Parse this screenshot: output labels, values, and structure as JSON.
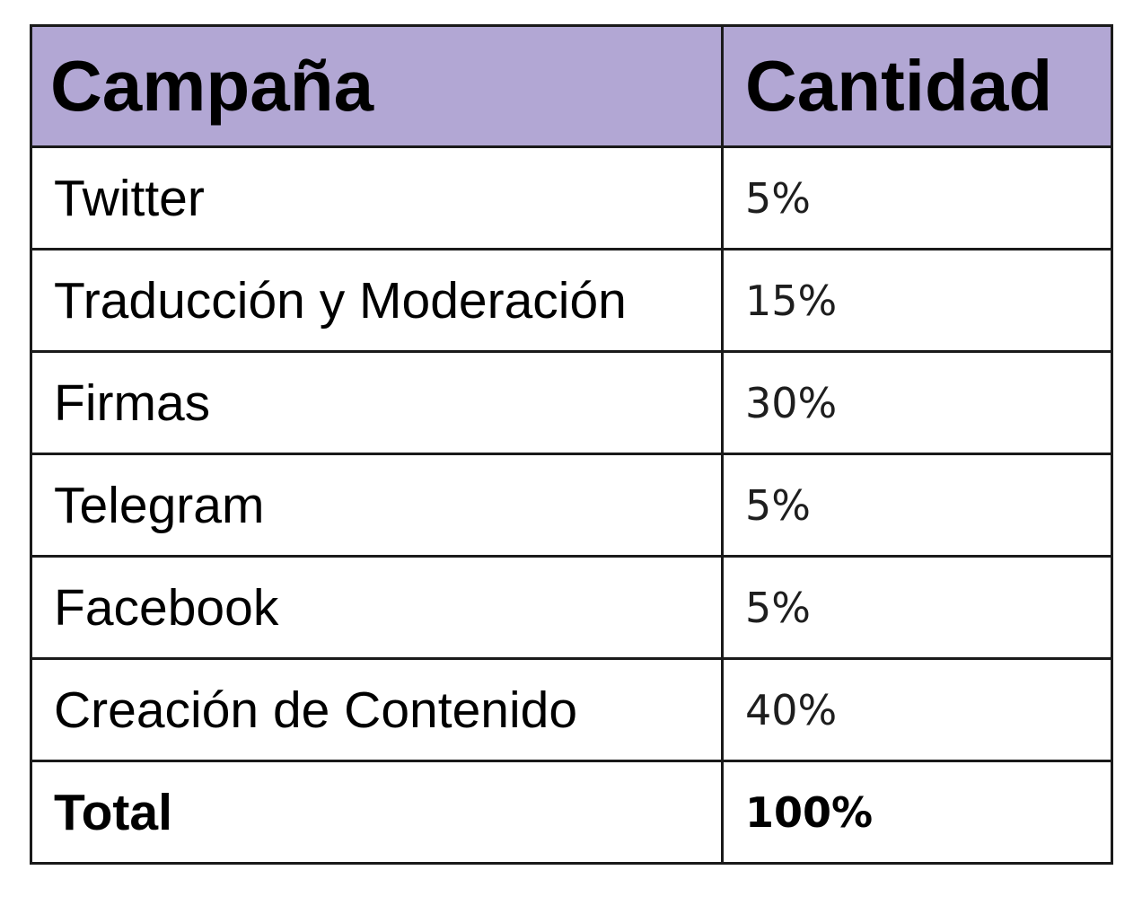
{
  "table": {
    "headers": [
      "Campaña",
      "Cantidad"
    ],
    "rows": [
      {
        "campaign": "Twitter",
        "amount": "5%"
      },
      {
        "campaign": "Traducción y Moderación",
        "amount": "15%"
      },
      {
        "campaign": "Firmas",
        "amount": "30%"
      },
      {
        "campaign": "Telegram",
        "amount": "5%"
      },
      {
        "campaign": "Facebook",
        "amount": "5%"
      },
      {
        "campaign": "Creación de Contenido",
        "amount": "40%"
      }
    ],
    "total": {
      "campaign": "Total",
      "amount": "100%"
    }
  },
  "colors": {
    "header_background": "#b2a7d4",
    "border": "#1a1a1a"
  }
}
